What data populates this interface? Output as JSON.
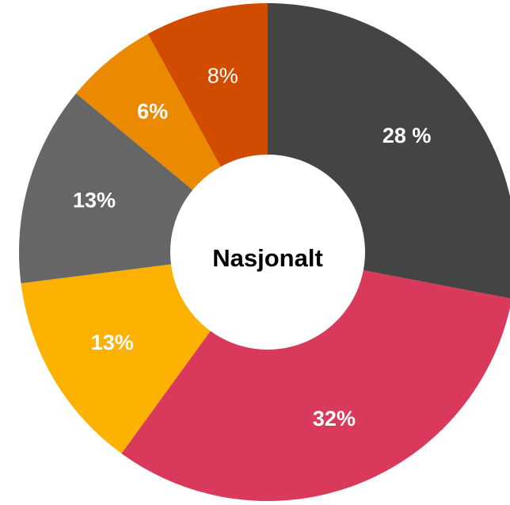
{
  "chart_data": {
    "type": "donut",
    "center_label": "Nasjonalt",
    "categories": [
      null,
      null,
      null,
      null,
      null,
      null
    ],
    "values": [
      28,
      32,
      13,
      13,
      6,
      8
    ],
    "value_labels": [
      "28 %",
      "32%",
      "13%",
      "13%",
      "6%",
      "8%"
    ],
    "colors": [
      "#444444",
      "#d9395a",
      "#fdb100",
      "#666666",
      "#eb8a00",
      "#d14b00"
    ]
  }
}
